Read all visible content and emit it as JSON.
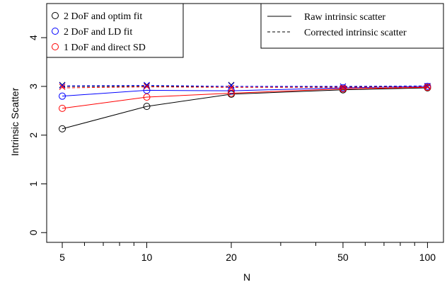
{
  "chart_data": {
    "type": "line",
    "xlabel": "N",
    "ylabel": "Intrinsic Scatter",
    "x_scale": "log",
    "xlim": [
      4.4,
      114
    ],
    "ylim": [
      -0.2,
      4.7
    ],
    "x_major_ticks": [
      5,
      10,
      20,
      50,
      100
    ],
    "x_minor_ticks": [
      6,
      7,
      8,
      9,
      30,
      40,
      60,
      70,
      80,
      90
    ],
    "y_ticks": [
      0,
      1,
      2,
      3,
      4
    ],
    "x": [
      5,
      10,
      20,
      50,
      100
    ],
    "series": [
      {
        "name": "2 DoF and optim fit",
        "color": "#000000",
        "raw": [
          2.13,
          2.59,
          2.84,
          2.93,
          2.97
        ],
        "corrected": [
          3.0,
          3.0,
          3.0,
          2.99,
          3.0
        ],
        "cross": [
          3.03,
          3.02,
          3.03,
          3.0,
          3.0
        ]
      },
      {
        "name": "2 DoF and LD fit",
        "color": "#0000ff",
        "raw": [
          2.8,
          2.92,
          2.91,
          2.97,
          3.0
        ],
        "corrected": [
          3.01,
          3.02,
          3.0,
          3.0,
          3.01
        ],
        "cross": [
          3.02,
          3.03,
          3.02,
          3.0,
          3.01
        ]
      },
      {
        "name": "1 DoF and direct SD",
        "color": "#ff0000",
        "raw": [
          2.55,
          2.78,
          2.86,
          2.95,
          2.98
        ],
        "corrected": [
          2.97,
          2.99,
          2.98,
          2.98,
          2.99
        ],
        "cross": [
          2.99,
          3.0,
          2.97,
          2.97,
          2.99
        ]
      }
    ],
    "legend_left": {
      "position": "top-left",
      "entries": [
        "2 DoF and optim fit",
        "2 DoF and LD fit",
        "1 DoF and direct SD"
      ]
    },
    "legend_right": {
      "position": "top-right",
      "entries": [
        {
          "label": "Raw intrinsic scatter",
          "style": "solid"
        },
        {
          "label": "Corrected intrinsic scatter",
          "style": "dashed"
        }
      ]
    }
  }
}
